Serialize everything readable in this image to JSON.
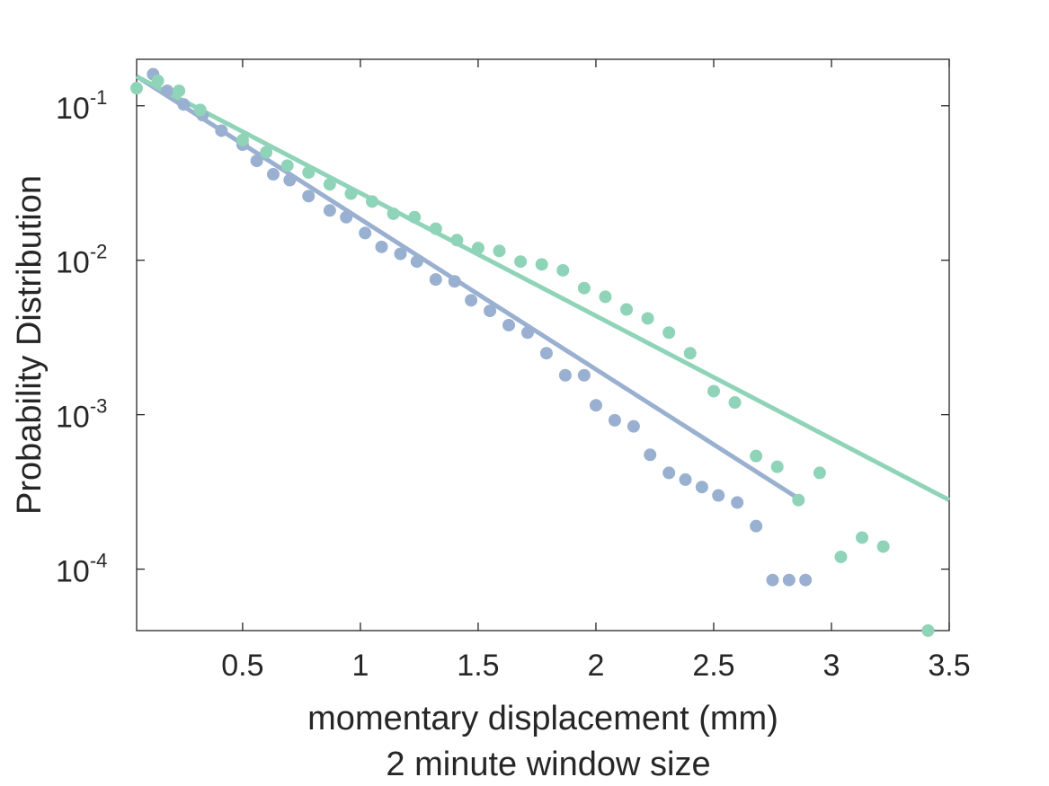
{
  "chart_data": {
    "type": "scatter",
    "xlabel": [
      "momentary displacement (mm)",
      "2 minute window size"
    ],
    "ylabel": "Probability Distribution",
    "xlim": [
      0.05,
      3.5
    ],
    "ylim": [
      4e-05,
      0.2
    ],
    "yscale": "log",
    "xticks": [
      0.5,
      1,
      1.5,
      2,
      2.5,
      3,
      3.5
    ],
    "xtick_labels": [
      "0.5",
      "1",
      "1.5",
      "2",
      "2.5",
      "3",
      "3.5"
    ],
    "yticks": [
      0.1,
      0.01,
      0.001,
      0.0001
    ],
    "ytick_labels": [
      {
        "base": "10",
        "exp": "-1"
      },
      {
        "base": "10",
        "exp": "-2"
      },
      {
        "base": "10",
        "exp": "-3"
      },
      {
        "base": "10",
        "exp": "-4"
      }
    ],
    "grid": false,
    "box": true,
    "series": [
      {
        "color": "#9ab0d0",
        "points": [
          [
            0.12,
            0.16
          ],
          [
            0.18,
            0.125
          ],
          [
            0.25,
            0.102
          ],
          [
            0.33,
            0.087
          ],
          [
            0.41,
            0.069
          ],
          [
            0.5,
            0.056
          ],
          [
            0.56,
            0.044
          ],
          [
            0.63,
            0.036
          ],
          [
            0.7,
            0.033
          ],
          [
            0.78,
            0.026
          ],
          [
            0.87,
            0.021
          ],
          [
            0.94,
            0.019
          ],
          [
            1.02,
            0.015
          ],
          [
            1.09,
            0.0122
          ],
          [
            1.17,
            0.011
          ],
          [
            1.24,
            0.0098
          ],
          [
            1.32,
            0.0075
          ],
          [
            1.4,
            0.0073
          ],
          [
            1.47,
            0.0055
          ],
          [
            1.55,
            0.0047
          ],
          [
            1.63,
            0.0038
          ],
          [
            1.71,
            0.0034
          ],
          [
            1.79,
            0.0025
          ],
          [
            1.87,
            0.0018
          ],
          [
            1.95,
            0.0018
          ],
          [
            2.0,
            0.00115
          ],
          [
            2.08,
            0.00092
          ],
          [
            2.16,
            0.00084
          ],
          [
            2.23,
            0.00055
          ],
          [
            2.31,
            0.00042
          ],
          [
            2.38,
            0.00038
          ],
          [
            2.45,
            0.00034
          ],
          [
            2.52,
            0.0003
          ],
          [
            2.6,
            0.00027
          ],
          [
            2.68,
            0.00019
          ],
          [
            2.75,
            8.5e-05
          ],
          [
            2.82,
            8.5e-05
          ],
          [
            2.89,
            8.5e-05
          ]
        ],
        "fit": [
          [
            0.05,
            0.155
          ],
          [
            2.87,
            0.00028
          ]
        ]
      },
      {
        "color": "#8fd4b8",
        "points": [
          [
            0.05,
            0.13
          ],
          [
            0.14,
            0.145
          ],
          [
            0.23,
            0.125
          ],
          [
            0.32,
            0.094
          ],
          [
            0.5,
            0.06
          ],
          [
            0.6,
            0.05
          ],
          [
            0.69,
            0.041
          ],
          [
            0.78,
            0.037
          ],
          [
            0.87,
            0.031
          ],
          [
            0.96,
            0.027
          ],
          [
            1.05,
            0.024
          ],
          [
            1.14,
            0.02
          ],
          [
            1.23,
            0.019
          ],
          [
            1.32,
            0.016
          ],
          [
            1.41,
            0.0135
          ],
          [
            1.5,
            0.012
          ],
          [
            1.59,
            0.0115
          ],
          [
            1.68,
            0.0098
          ],
          [
            1.77,
            0.0094
          ],
          [
            1.86,
            0.0086
          ],
          [
            1.95,
            0.0066
          ],
          [
            2.04,
            0.0058
          ],
          [
            2.13,
            0.0048
          ],
          [
            2.22,
            0.0042
          ],
          [
            2.31,
            0.0034
          ],
          [
            2.4,
            0.0025
          ],
          [
            2.5,
            0.00142
          ],
          [
            2.59,
            0.0012
          ],
          [
            2.68,
            0.00054
          ],
          [
            2.77,
            0.00046
          ],
          [
            2.86,
            0.00028
          ],
          [
            2.95,
            0.00042
          ],
          [
            3.04,
            0.00012
          ],
          [
            3.13,
            0.00016
          ],
          [
            3.22,
            0.00014
          ],
          [
            3.41,
            4e-05
          ]
        ],
        "fit": [
          [
            0.05,
            0.155
          ],
          [
            3.5,
            0.00028
          ]
        ]
      }
    ]
  }
}
